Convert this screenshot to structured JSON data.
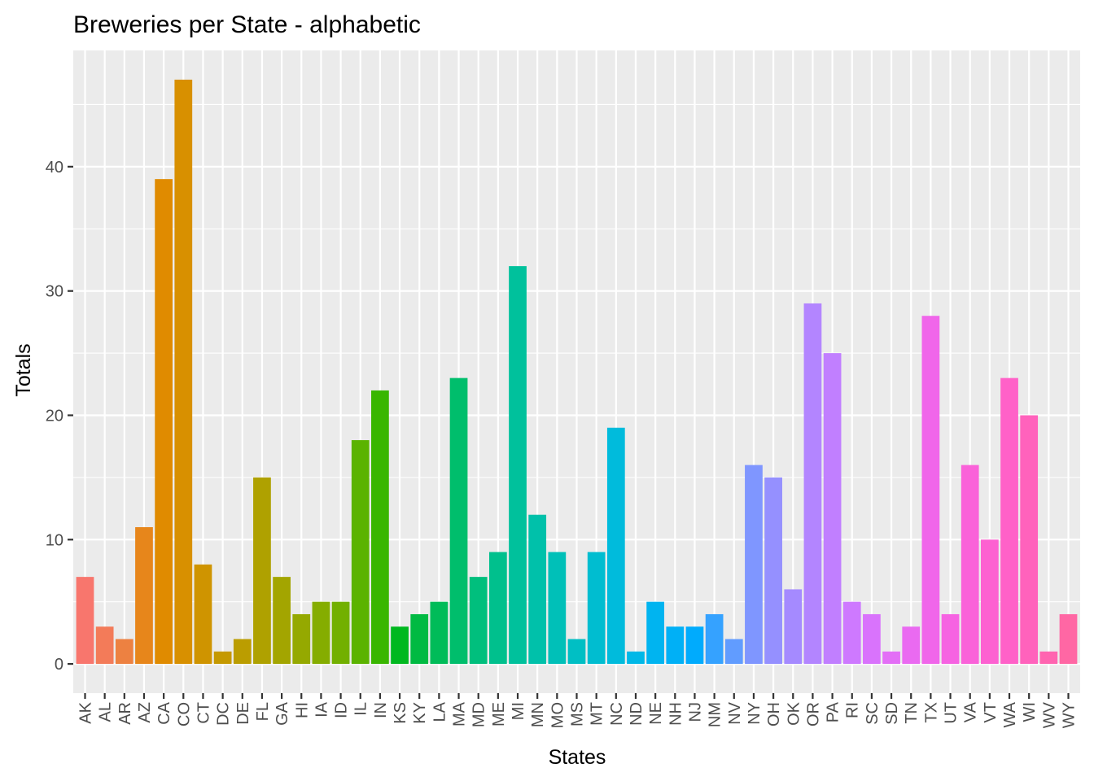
{
  "chart_data": {
    "type": "bar",
    "title": "Breweries per State - alphabetic",
    "xlabel": "States",
    "ylabel": "Totals",
    "categories": [
      "AK",
      "AL",
      "AR",
      "AZ",
      "CA",
      "CO",
      "CT",
      "DC",
      "DE",
      "FL",
      "GA",
      "HI",
      "IA",
      "ID",
      "IL",
      "IN",
      "KS",
      "KY",
      "LA",
      "MA",
      "MD",
      "ME",
      "MI",
      "MN",
      "MO",
      "MS",
      "MT",
      "NC",
      "ND",
      "NE",
      "NH",
      "NJ",
      "NM",
      "NV",
      "NY",
      "OH",
      "OK",
      "OR",
      "PA",
      "RI",
      "SC",
      "SD",
      "TN",
      "TX",
      "UT",
      "VA",
      "VT",
      "WA",
      "WI",
      "WV",
      "WY"
    ],
    "values": [
      7,
      3,
      2,
      11,
      39,
      47,
      8,
      1,
      2,
      15,
      7,
      4,
      5,
      5,
      18,
      22,
      3,
      4,
      5,
      23,
      7,
      9,
      32,
      12,
      9,
      2,
      9,
      19,
      1,
      5,
      3,
      3,
      4,
      2,
      16,
      15,
      6,
      29,
      25,
      5,
      4,
      1,
      3,
      28,
      4,
      16,
      10,
      23,
      20,
      1,
      4
    ],
    "colors": [
      "#F8766D",
      "#F37B59",
      "#ED8141",
      "#E7861B",
      "#E08B00",
      "#D89000",
      "#CF9400",
      "#C59900",
      "#BB9D00",
      "#AFA100",
      "#A3A500",
      "#95A900",
      "#85AD00",
      "#72B000",
      "#5BB300",
      "#39B600",
      "#00B81F",
      "#00BA42",
      "#00BC59",
      "#00BE6C",
      "#00BF7D",
      "#00C08D",
      "#00C19C",
      "#00C1AA",
      "#00C0B8",
      "#00BFC4",
      "#00BDD0",
      "#00BBDC",
      "#00B8E7",
      "#00B4F0",
      "#00B0F6",
      "#00ABFD",
      "#35A2FF",
      "#619CFF",
      "#7F96FF",
      "#9590FF",
      "#A58AFF",
      "#B385FF",
      "#C17FFF",
      "#CE79FF",
      "#D973FC",
      "#E36EF6",
      "#EA6AF1",
      "#F066EA",
      "#F663E2",
      "#FA62D9",
      "#FD61D1",
      "#FF61C8",
      "#FF62BC",
      "#FF64B0",
      "#FF67A4"
    ],
    "yticks": [
      0,
      10,
      20,
      30,
      40
    ],
    "ylim": [
      -2.35,
      49.35
    ],
    "grid": true,
    "panel_background": "#EBEBEB",
    "grid_color": "#FFFFFF"
  }
}
